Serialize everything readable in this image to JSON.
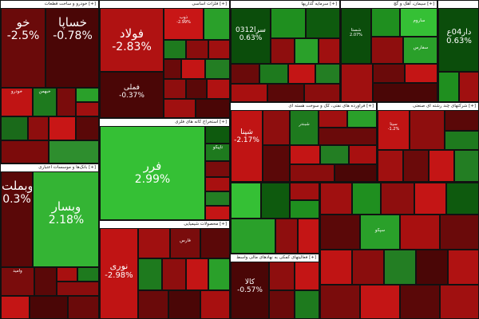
{
  "colors": {
    "deep_red": "#5a0808",
    "red": "#a50f0f",
    "bright_red": "#d01818",
    "dark_green": "#0b4d0b",
    "green": "#1f8f1f",
    "bright_green": "#35c035"
  },
  "sectors": [
    {
      "name": "خودرو و ساخت قطعات [+]"
    },
    {
      "name": "فلزات اساسی [+]"
    },
    {
      "name": "سرمایه گذاریها [+]"
    },
    {
      "name": "سیمان، آهک و گچ [+]"
    },
    {
      "name": "بانک‌ها و موسسات اعتباری [+]"
    },
    {
      "name": "استخراج کانه های فلزی [+]"
    },
    {
      "name": "فراورده های نفتی، کک و سوخت هسته ای [+]"
    },
    {
      "name": "محصولات شیمیایی [+]"
    },
    {
      "name": "شرکتهای چند رشته ای صنعتی [+]"
    },
    {
      "name": "فعالیتهای کمکی به نهادهای مالی واسط [+]"
    }
  ],
  "tiles": [
    {
      "sym": "خو",
      "chg": "-2.5%"
    },
    {
      "sym": "خساپا",
      "chg": "-0.78%"
    },
    {
      "sym": "فولاد",
      "chg": "-2.83%"
    },
    {
      "sym": "فملی",
      "chg": "-0.37%"
    },
    {
      "sym": "وبملت",
      "chg": "0.3%"
    },
    {
      "sym": "وبسار",
      "chg": "2.18%"
    },
    {
      "sym": "فرر",
      "chg": "2.99%"
    },
    {
      "sym": "نوری",
      "chg": "-2.98%"
    },
    {
      "sym": "کالا",
      "chg": "-0.57%"
    },
    {
      "sym": "سرا0312",
      "chg": "0.63%"
    },
    {
      "sym": "دار04ع",
      "chg": "0.63%"
    },
    {
      "sym": "شپنا",
      "chg": "-2.17%"
    },
    {
      "sym": "ذوب",
      "chg": "-2.99%"
    },
    {
      "sym": "شستا",
      "chg": "2.07%"
    },
    {
      "sym": "سیتا",
      "chg": "-1.2%"
    },
    {
      "sym": "وامید",
      "chg": ""
    },
    {
      "sym": "خودرو",
      "chg": ""
    },
    {
      "sym": "خبهمن",
      "chg": ""
    },
    {
      "sym": "فارس",
      "chg": ""
    },
    {
      "sym": "تاپیکو",
      "chg": ""
    },
    {
      "sym": "شبندر",
      "chg": ""
    },
    {
      "sym": "ساروم",
      "chg": ""
    },
    {
      "sym": "سفارس",
      "chg": ""
    },
    {
      "sym": "سپکو",
      "chg": ""
    }
  ]
}
